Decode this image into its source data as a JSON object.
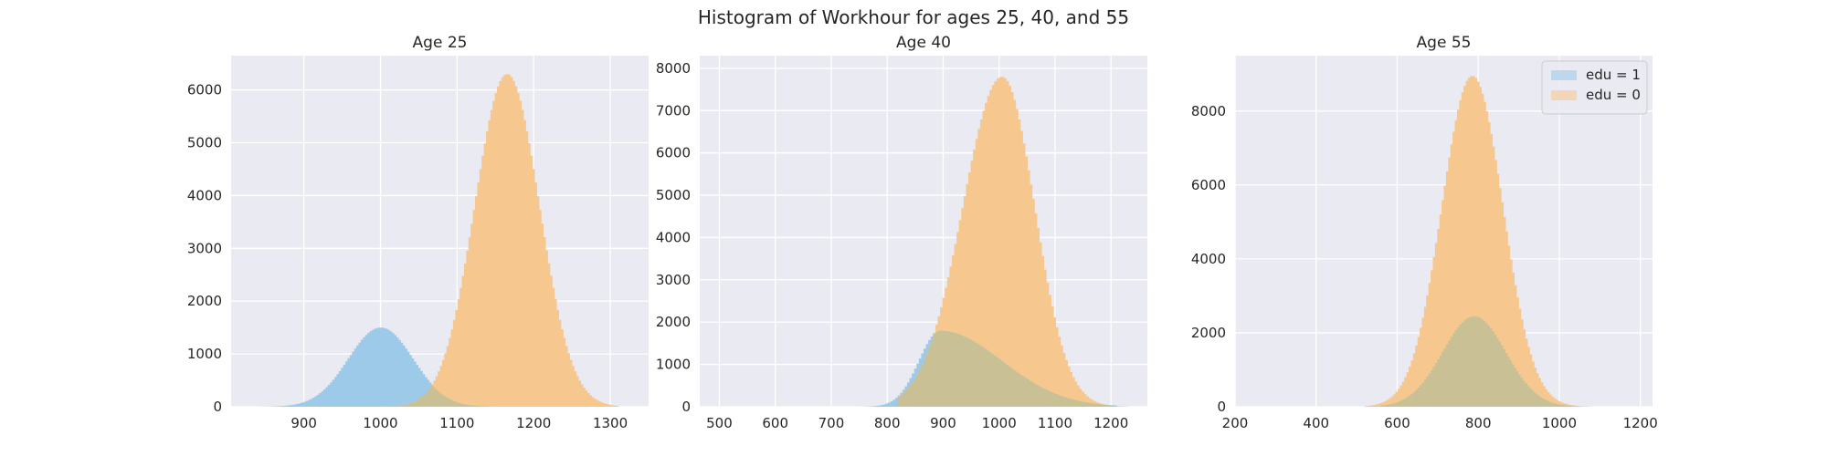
{
  "figure": {
    "suptitle": "Histogram of Workhour for ages 25, 40, and 55",
    "colors": {
      "axes_bg": "#EAEAF2",
      "grid": "#FFFFFF",
      "edu1_fill": "#9ECAE9",
      "edu0_fill": "#F6C88F",
      "overlap_fill": "#C9C195",
      "legend_bg": "#EAEAF2",
      "legend_edge": "#CCCCCC"
    }
  },
  "chart_data": [
    {
      "type": "histogram",
      "title": "Age 25",
      "xlim": [
        805,
        1350
      ],
      "ylim": [
        0,
        6650
      ],
      "xticks": [
        900,
        1000,
        1100,
        1200,
        1300
      ],
      "yticks": [
        0,
        1000,
        2000,
        3000,
        4000,
        5000,
        6000
      ],
      "grid": true,
      "series": [
        {
          "label": "edu = 1",
          "color": "#9ECAE9",
          "peak_x": 1000,
          "peak_count": 1500,
          "spread": 42,
          "range": [
            840,
            1150
          ]
        },
        {
          "label": "edu = 0",
          "color": "#F6C88F",
          "peak_x": 1165,
          "peak_count": 6300,
          "spread": 42,
          "range": [
            1000,
            1310
          ]
        }
      ]
    },
    {
      "type": "histogram",
      "title": "Age 40",
      "xlim": [
        465,
        1265
      ],
      "ylim": [
        0,
        8300
      ],
      "xticks": [
        500,
        600,
        700,
        800,
        900,
        1000,
        1100,
        1200
      ],
      "yticks": [
        0,
        1000,
        2000,
        3000,
        4000,
        5000,
        6000,
        7000,
        8000
      ],
      "grid": true,
      "series": [
        {
          "label": "edu = 1",
          "color": "#9ECAE9",
          "peak_x": 895,
          "peak_count": 1800,
          "spread_left": 38,
          "spread_right": 110,
          "range": [
            700,
            1210
          ]
        },
        {
          "label": "edu = 0",
          "color": "#F6C88F",
          "peak_x": 1005,
          "peak_count": 7800,
          "spread_left": 70,
          "spread_right": 58,
          "range": [
            820,
            1230
          ]
        }
      ]
    },
    {
      "type": "histogram",
      "title": "Age 55",
      "xlim": [
        200,
        1230
      ],
      "ylim": [
        0,
        9500
      ],
      "xticks": [
        200,
        400,
        600,
        800,
        1000,
        1200
      ],
      "yticks": [
        0,
        2000,
        4000,
        6000,
        8000
      ],
      "grid": true,
      "legend": {
        "placement": "top-right",
        "entries": [
          "edu = 1",
          "edu = 0"
        ]
      },
      "series": [
        {
          "label": "edu = 1",
          "color": "#9ECAE9",
          "peak_x": 790,
          "peak_count": 2450,
          "spread": 78,
          "range": [
            560,
            1060
          ]
        },
        {
          "label": "edu = 0",
          "color": "#F6C88F",
          "peak_x": 785,
          "peak_count": 8950,
          "spread": 75,
          "range": [
            520,
            1080
          ]
        }
      ]
    }
  ]
}
